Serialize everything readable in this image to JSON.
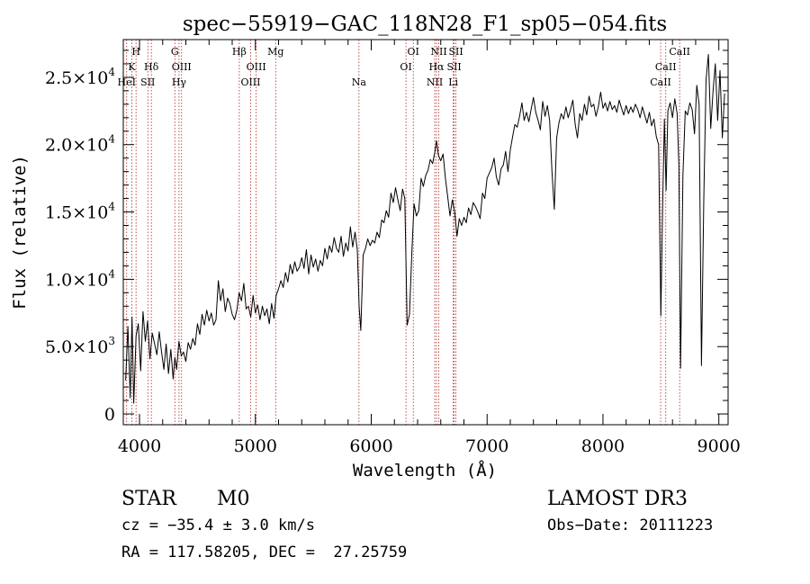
{
  "chart_data": {
    "type": "line",
    "title": "spec−55919−GAC_118N28_F1_sp05−054.fits",
    "xlabel": "Wavelength (Å)",
    "ylabel": "Flux (relative)",
    "xlim": [
      3860,
      9080
    ],
    "ylim": [
      -800,
      27800
    ],
    "x_ticks": [
      4000,
      5000,
      6000,
      7000,
      8000,
      9000
    ],
    "x_tick_labels": [
      "4000",
      "5000",
      "6000",
      "7000",
      "8000",
      "9000"
    ],
    "y_ticks": [
      0,
      5000,
      10000,
      15000,
      20000,
      25000
    ],
    "y_tick_labels": [
      {
        "mantissa": "0",
        "exp": ""
      },
      {
        "mantissa": "5.0×10",
        "exp": "3"
      },
      {
        "mantissa": "1.0×10",
        "exp": "4"
      },
      {
        "mantissa": "1.5×10",
        "exp": "4"
      },
      {
        "mantissa": "2.0×10",
        "exp": "4"
      },
      {
        "mantissa": "2.5×10",
        "exp": "4"
      }
    ],
    "spectral_lines": [
      {
        "label": "H",
        "wavelength": 3970,
        "row": 0
      },
      {
        "label": "K",
        "wavelength": 3934,
        "row": 1
      },
      {
        "label": "HeI",
        "wavelength": 3889,
        "row": 2
      },
      {
        "label": "SII",
        "wavelength": 4072,
        "row": 2
      },
      {
        "label": "Hδ",
        "wavelength": 4102,
        "row": 1
      },
      {
        "label": "G",
        "wavelength": 4305,
        "row": 0
      },
      {
        "label": "OIII",
        "wavelength": 4363,
        "row": 1
      },
      {
        "label": "Hγ",
        "wavelength": 4341,
        "row": 2
      },
      {
        "label": "Hβ",
        "wavelength": 4861,
        "row": 0
      },
      {
        "label": "OIII",
        "wavelength": 4959,
        "row": 2
      },
      {
        "label": "OIII",
        "wavelength": 5007,
        "row": 1
      },
      {
        "label": "Mg",
        "wavelength": 5175,
        "row": 0
      },
      {
        "label": "Na",
        "wavelength": 5894,
        "row": 2
      },
      {
        "label": "OI",
        "wavelength": 6300,
        "row": 1
      },
      {
        "label": "OI",
        "wavelength": 6363,
        "row": 0
      },
      {
        "label": "NII",
        "wavelength": 6548,
        "row": 2
      },
      {
        "label": "NII",
        "wavelength": 6583,
        "row": 0
      },
      {
        "label": "Hα",
        "wavelength": 6563,
        "row": 1
      },
      {
        "label": "SII",
        "wavelength": 6716,
        "row": 1
      },
      {
        "label": "SII",
        "wavelength": 6731,
        "row": 0
      },
      {
        "label": "Li",
        "wavelength": 6708,
        "row": 2
      },
      {
        "label": "CaII",
        "wavelength": 8498,
        "row": 2
      },
      {
        "label": "CaII",
        "wavelength": 8542,
        "row": 1
      },
      {
        "label": "CaII",
        "wavelength": 8662,
        "row": 0
      }
    ],
    "spectrum": {
      "x": [
        3880,
        3900,
        3920,
        3935,
        3950,
        3970,
        3990,
        4010,
        4030,
        4050,
        4070,
        4090,
        4110,
        4130,
        4150,
        4170,
        4190,
        4210,
        4230,
        4250,
        4270,
        4290,
        4305,
        4320,
        4340,
        4360,
        4380,
        4400,
        4420,
        4440,
        4460,
        4480,
        4500,
        4520,
        4540,
        4560,
        4580,
        4600,
        4620,
        4640,
        4660,
        4680,
        4700,
        4720,
        4740,
        4760,
        4780,
        4800,
        4820,
        4840,
        4860,
        4880,
        4900,
        4920,
        4940,
        4960,
        4980,
        5000,
        5020,
        5040,
        5060,
        5080,
        5100,
        5120,
        5140,
        5160,
        5180,
        5200,
        5220,
        5240,
        5260,
        5280,
        5300,
        5320,
        5340,
        5360,
        5380,
        5400,
        5420,
        5440,
        5460,
        5480,
        5500,
        5520,
        5540,
        5560,
        5580,
        5600,
        5620,
        5640,
        5660,
        5680,
        5700,
        5720,
        5740,
        5760,
        5780,
        5800,
        5820,
        5840,
        5860,
        5880,
        5895,
        5910,
        5930,
        5950,
        5970,
        5990,
        6010,
        6030,
        6050,
        6070,
        6090,
        6110,
        6130,
        6150,
        6170,
        6190,
        6210,
        6230,
        6250,
        6270,
        6290,
        6310,
        6330,
        6350,
        6370,
        6390,
        6410,
        6430,
        6450,
        6470,
        6490,
        6510,
        6530,
        6550,
        6563,
        6580,
        6600,
        6620,
        6640,
        6660,
        6680,
        6700,
        6720,
        6740,
        6760,
        6780,
        6800,
        6820,
        6840,
        6860,
        6880,
        6900,
        6920,
        6940,
        6960,
        6980,
        7000,
        7020,
        7040,
        7060,
        7080,
        7100,
        7120,
        7140,
        7160,
        7180,
        7200,
        7220,
        7240,
        7260,
        7280,
        7300,
        7320,
        7340,
        7360,
        7380,
        7400,
        7420,
        7440,
        7460,
        7480,
        7500,
        7520,
        7540,
        7560,
        7580,
        7600,
        7620,
        7640,
        7660,
        7680,
        7700,
        7720,
        7740,
        7760,
        7780,
        7800,
        7820,
        7840,
        7860,
        7880,
        7900,
        7920,
        7940,
        7960,
        7980,
        8000,
        8020,
        8040,
        8060,
        8080,
        8100,
        8120,
        8140,
        8160,
        8180,
        8200,
        8220,
        8240,
        8260,
        8280,
        8300,
        8320,
        8340,
        8360,
        8380,
        8400,
        8420,
        8440,
        8460,
        8480,
        8500,
        8515,
        8530,
        8545,
        8560,
        8580,
        8600,
        8620,
        8640,
        8655,
        8670,
        8690,
        8710,
        8730,
        8750,
        8770,
        8790,
        8810,
        8830,
        8850,
        8870,
        8890,
        8910,
        8930,
        8950,
        8970,
        8990,
        9010,
        9030,
        9050
      ],
      "y": [
        2500,
        6500,
        1200,
        7200,
        800,
        5800,
        6700,
        3200,
        7600,
        5400,
        6900,
        4100,
        6000,
        5200,
        4400,
        6100,
        4600,
        3300,
        5200,
        3000,
        4800,
        2600,
        4200,
        3300,
        5400,
        4300,
        4600,
        3900,
        5300,
        4800,
        5600,
        5100,
        6700,
        5900,
        7400,
        6600,
        7700,
        6900,
        7500,
        6600,
        7000,
        9900,
        8400,
        9300,
        7600,
        8600,
        8200,
        7400,
        7000,
        7700,
        9000,
        8400,
        9700,
        7800,
        8000,
        7200,
        8800,
        7500,
        8100,
        7000,
        8000,
        7300,
        7800,
        6700,
        8200,
        7100,
        8800,
        9300,
        9900,
        9400,
        10500,
        9800,
        11100,
        10400,
        11300,
        10600,
        10900,
        11600,
        10800,
        12200,
        10400,
        11800,
        10900,
        11500,
        10600,
        11400,
        11000,
        12300,
        11500,
        12500,
        12000,
        13100,
        12300,
        12000,
        13200,
        11700,
        12700,
        12100,
        13900,
        12400,
        13500,
        12200,
        8000,
        6200,
        11800,
        12300,
        13000,
        12500,
        12900,
        12700,
        13500,
        13100,
        14400,
        14200,
        15100,
        14600,
        16400,
        15700,
        16800,
        15900,
        15100,
        16700,
        16000,
        6600,
        7400,
        12000,
        15600,
        14700,
        15100,
        17500,
        16900,
        17700,
        18100,
        18900,
        18600,
        19500,
        20300,
        19200,
        18800,
        19300,
        17500,
        16100,
        14700,
        15900,
        15000,
        13200,
        14500,
        14000,
        14600,
        14200,
        15300,
        14800,
        15700,
        15400,
        15000,
        14500,
        16400,
        16000,
        17500,
        17900,
        18300,
        19000,
        17600,
        17000,
        18200,
        18500,
        19500,
        18000,
        19600,
        20600,
        21500,
        21300,
        22100,
        23100,
        21800,
        22400,
        21700,
        22600,
        23500,
        22400,
        21800,
        21100,
        23200,
        22100,
        22900,
        21800,
        18000,
        15200,
        20500,
        21600,
        22300,
        21900,
        22800,
        22000,
        22600,
        23300,
        21500,
        20500,
        22300,
        21800,
        23000,
        22200,
        23600,
        22800,
        23000,
        22100,
        22800,
        23900,
        22700,
        23100,
        22500,
        23200,
        22600,
        22900,
        22400,
        23300,
        22700,
        22200,
        22900,
        22300,
        22800,
        22400,
        23000,
        22600,
        22000,
        22800,
        22200,
        21600,
        22400,
        21400,
        21900,
        20600,
        20000,
        7300,
        15600,
        21900,
        16600,
        22500,
        23100,
        22000,
        23400,
        22300,
        18500,
        3400,
        17700,
        22500,
        22200,
        23100,
        22600,
        20800,
        24400,
        23000,
        3600,
        16000,
        24800,
        26700,
        21200,
        24000,
        26000,
        21800,
        25500,
        20500,
        23800
      ]
    }
  },
  "info": {
    "object_class": "STAR",
    "subclass": "M0",
    "survey": "LAMOST DR3",
    "redshift": "cz = −35.4 ± 3.0 km/s",
    "obs_date": "Obs−Date: 20111223",
    "coordinates": "RA = 117.58205, DEC =  27.25759"
  },
  "colors": {
    "axis": "#000000",
    "spectrum": "#000000",
    "line_marker": "#b22222"
  }
}
